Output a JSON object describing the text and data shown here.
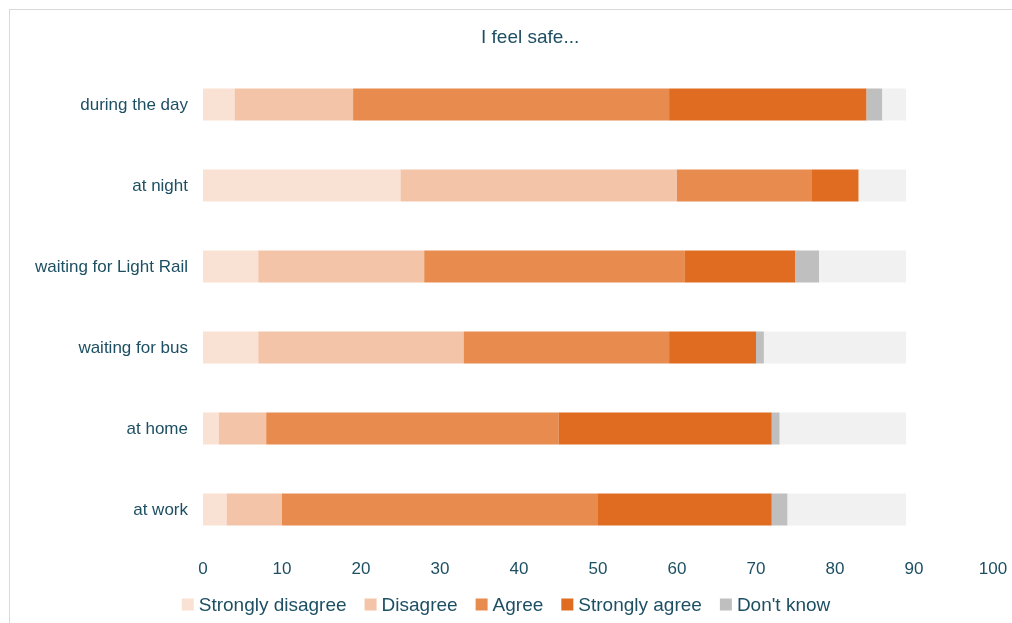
{
  "chart_data": {
    "type": "bar",
    "orientation": "horizontal",
    "stacked": true,
    "title": "I feel safe...",
    "categories": [
      "during the day",
      "at night",
      "waiting for Light Rail",
      "waiting for bus",
      "at home",
      "at work"
    ],
    "series": [
      {
        "name": "Strongly disagree",
        "color": "#f9e1d3",
        "values": [
          4,
          25,
          7,
          7,
          2,
          3
        ]
      },
      {
        "name": "Disagree",
        "color": "#f3c4a8",
        "values": [
          15,
          35,
          21,
          26,
          6,
          7
        ]
      },
      {
        "name": "Agree",
        "color": "#e88b4e",
        "values": [
          40,
          17,
          33,
          26,
          37,
          40
        ]
      },
      {
        "name": "Strongly agree",
        "color": "#e06c22",
        "values": [
          25,
          6,
          14,
          11,
          27,
          22
        ]
      },
      {
        "name": "Don't know",
        "color": "#bfbfbf",
        "values": [
          2,
          0,
          3,
          1,
          1,
          2
        ]
      },
      {
        "color": "#f1f1f1",
        "values": [
          3,
          6,
          11,
          18,
          16,
          15
        ]
      }
    ],
    "xlim": [
      0,
      100
    ],
    "xticks": [
      0,
      10,
      20,
      30,
      40,
      50,
      60,
      70,
      80,
      90,
      100
    ],
    "grid": false,
    "legend": "bottom"
  }
}
